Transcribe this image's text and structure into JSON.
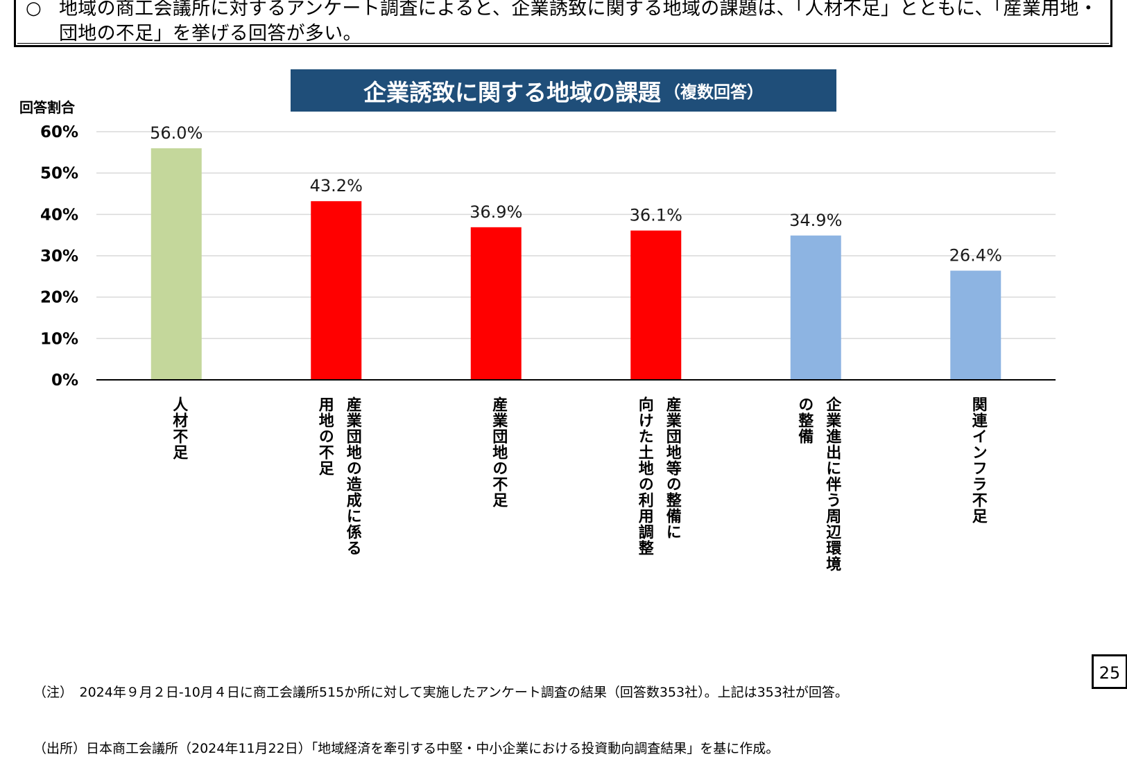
{
  "summary": {
    "bullet": "○",
    "text": "地域の商工会議所に対するアンケート調査によると、企業誘致に関する地域の課題は、「人材不足」とともに、「産業用地・団地の不足」を挙げる回答が多い。"
  },
  "chart_data": {
    "type": "bar",
    "title": "企業誘致に関する地域の課題",
    "subtitle": "（複数回答）",
    "ylabel": "回答割合",
    "xlabel": "",
    "ylim": [
      0,
      60
    ],
    "yticks": [
      "0%",
      "10%",
      "20%",
      "30%",
      "40%",
      "50%",
      "60%"
    ],
    "grid": true,
    "categories": [
      "人材不足",
      "産業団地の造成に係る\n用地の不足",
      "産業団地の不足",
      "産業団地等の整備に\n向けた土地の利用調整",
      "企業進出に伴う周辺環境\nの整備",
      "関連インフラ不足"
    ],
    "values": [
      56.0,
      43.2,
      36.9,
      36.1,
      34.9,
      26.4
    ],
    "value_labels": [
      "56.0%",
      "43.2%",
      "36.9%",
      "36.1%",
      "34.9%",
      "26.4%"
    ],
    "bar_colors": [
      "#C4D79B",
      "#FF0000",
      "#FF0000",
      "#FF0000",
      "#8DB4E2",
      "#8DB4E2"
    ],
    "axis_color": "#000000",
    "grid_color": "#D9D9D9"
  },
  "notes": {
    "note": "（注）　2024年９月２日-10月４日に商工会議所515か所に対して実施したアンケート調査の結果（回答数353社）。上記は353社が回答。",
    "source": "（出所）日本商工会議所（2024年11月22日）「地域経済を牽引する中堅・中小企業における投資動向調査結果」を基に作成。"
  },
  "page_number": "25"
}
